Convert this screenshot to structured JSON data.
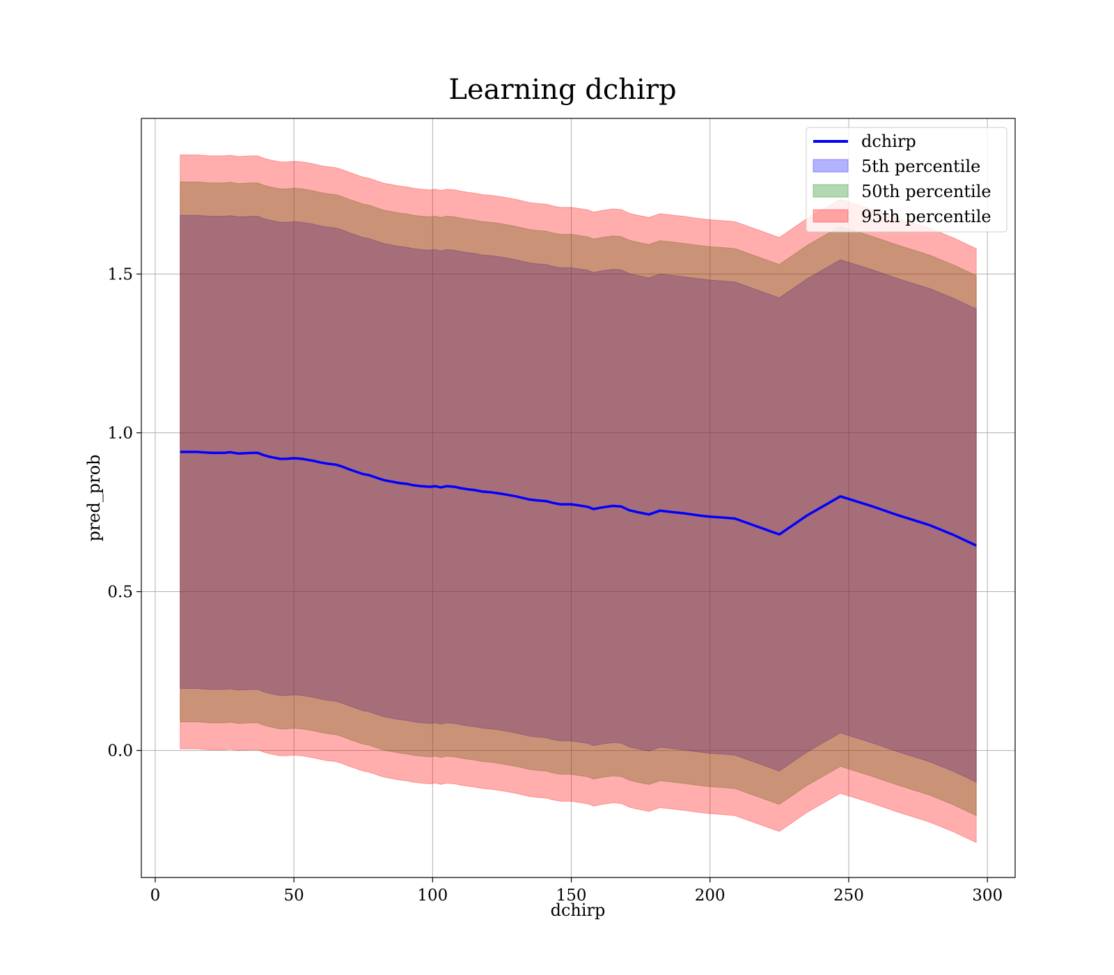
{
  "chart_data": {
    "type": "area",
    "title": "Learning dchirp",
    "xlabel": "dchirp",
    "ylabel": "pred_prob",
    "xlim": [
      -5,
      310
    ],
    "ylim": [
      -0.4,
      1.99
    ],
    "xticks": [
      0,
      50,
      100,
      150,
      200,
      250,
      300
    ],
    "yticks": [
      0.0,
      0.5,
      1.0,
      1.5
    ],
    "xtick_labels": [
      "0",
      "50",
      "100",
      "150",
      "200",
      "250",
      "300"
    ],
    "ytick_labels": [
      "0.0",
      "0.5",
      "1.0",
      "1.5"
    ],
    "grid": true,
    "legend_position": "upper right",
    "line": {
      "name": "dchirp",
      "color": "#0000ff",
      "x": [
        9,
        15,
        20,
        25,
        27,
        30,
        35,
        37,
        39,
        41,
        45,
        47,
        50,
        53,
        55,
        57,
        60,
        62,
        65,
        67,
        70,
        73,
        75,
        77,
        79,
        81,
        83,
        85,
        88,
        91,
        93,
        96,
        99,
        101,
        103,
        105,
        108,
        110,
        113,
        115,
        118,
        121,
        125,
        130,
        135,
        138,
        141,
        143,
        146,
        150,
        153,
        156,
        158,
        161,
        165,
        168,
        171,
        174,
        178,
        182,
        186,
        191,
        196,
        200,
        205,
        209,
        217,
        225,
        235,
        247,
        258,
        268,
        279,
        288,
        296
      ],
      "y": [
        0.94,
        0.94,
        0.937,
        0.937,
        0.939,
        0.935,
        0.937,
        0.937,
        0.93,
        0.925,
        0.918,
        0.918,
        0.92,
        0.918,
        0.915,
        0.912,
        0.906,
        0.903,
        0.9,
        0.895,
        0.885,
        0.876,
        0.87,
        0.867,
        0.861,
        0.855,
        0.85,
        0.847,
        0.842,
        0.839,
        0.835,
        0.832,
        0.83,
        0.832,
        0.828,
        0.832,
        0.83,
        0.826,
        0.822,
        0.82,
        0.815,
        0.813,
        0.808,
        0.8,
        0.79,
        0.787,
        0.785,
        0.78,
        0.775,
        0.775,
        0.771,
        0.767,
        0.76,
        0.765,
        0.77,
        0.768,
        0.756,
        0.75,
        0.743,
        0.755,
        0.751,
        0.746,
        0.74,
        0.736,
        0.733,
        0.73,
        0.705,
        0.68,
        0.74,
        0.8,
        0.77,
        0.74,
        0.71,
        0.678,
        0.645
      ]
    },
    "bands": [
      {
        "name": "5th percentile",
        "color": "#0000ff",
        "alpha": 0.3,
        "half_width": 0.745
      },
      {
        "name": "50th percentile",
        "color": "#008000",
        "alpha": 0.3,
        "half_width": 0.85
      },
      {
        "name": "95th percentile",
        "color": "#ff0000",
        "alpha": 0.32,
        "half_width": 0.935
      }
    ],
    "legend": [
      "dchirp",
      "5th percentile",
      "50th percentile",
      "95th percentile"
    ]
  }
}
